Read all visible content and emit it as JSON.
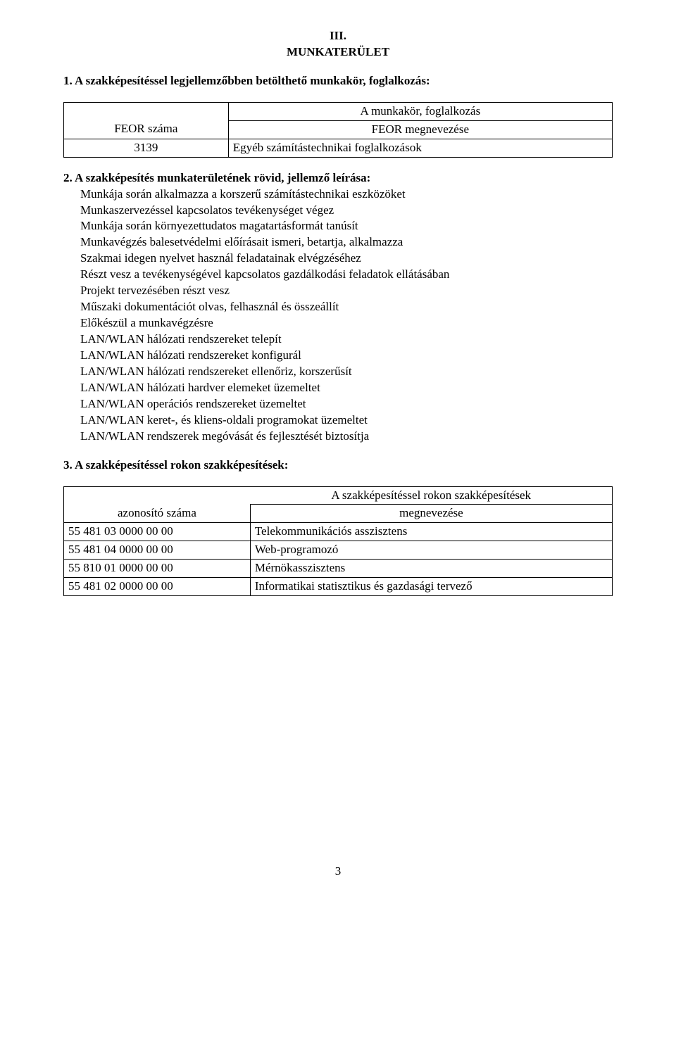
{
  "header": {
    "roman": "III.",
    "title": "MUNKATERÜLET"
  },
  "sec1": {
    "heading": "1.   A szakképesítéssel legjellemzőbben betölthető munkakör, foglalkozás:",
    "table": {
      "super_header": "A munkakör, foglalkozás",
      "col1": "FEOR száma",
      "col2": "FEOR megnevezése",
      "row_code": "3139",
      "row_name": "Egyéb számítástechnikai foglalkozások"
    }
  },
  "sec2": {
    "heading": "2.   A szakképesítés munkaterületének rövid, jellemző leírása:",
    "lines": [
      "Munkája során alkalmazza a korszerű számítástechnikai eszközöket",
      "Munkaszervezéssel kapcsolatos tevékenységet végez",
      "Munkája során környezettudatos magatartásformát tanúsít",
      "Munkavégzés balesetvédelmi előírásait ismeri, betartja, alkalmazza",
      "Szakmai idegen nyelvet használ feladatainak elvégzéséhez",
      "Részt vesz a tevékenységével kapcsolatos gazdálkodási feladatok ellátásában",
      "Projekt tervezésében részt vesz",
      "Műszaki dokumentációt olvas, felhasznál és összeállít",
      "Előkészül a munkavégzésre",
      "LAN/WLAN hálózati rendszereket telepít",
      "LAN/WLAN hálózati rendszereket konfigurál",
      "LAN/WLAN hálózati rendszereket ellenőriz, korszerűsít",
      "LAN/WLAN hálózati hardver elemeket üzemeltet",
      "LAN/WLAN operációs rendszereket üzemeltet",
      "LAN/WLAN keret-, és kliens-oldali programokat üzemeltet",
      "LAN/WLAN rendszerek megóvását és fejlesztését biztosítja"
    ]
  },
  "sec3": {
    "heading": "3.   A szakképesítéssel rokon szakképesítések:",
    "table": {
      "super_header": "A szakképesítéssel rokon szakképesítések",
      "col1": "azonosító száma",
      "col2": "megnevezése",
      "rows": [
        {
          "code": "55 481 03 0000 00 00",
          "name": "Telekommunikációs asszisztens"
        },
        {
          "code": "55 481 04 0000 00 00",
          "name": "Web-programozó"
        },
        {
          "code": "55 810 01 0000 00 00",
          "name": "Mérnökasszisztens"
        },
        {
          "code": "55 481 02 0000 00 00",
          "name": "Informatikai statisztikus és gazdasági tervező"
        }
      ]
    }
  },
  "page_number": "3"
}
